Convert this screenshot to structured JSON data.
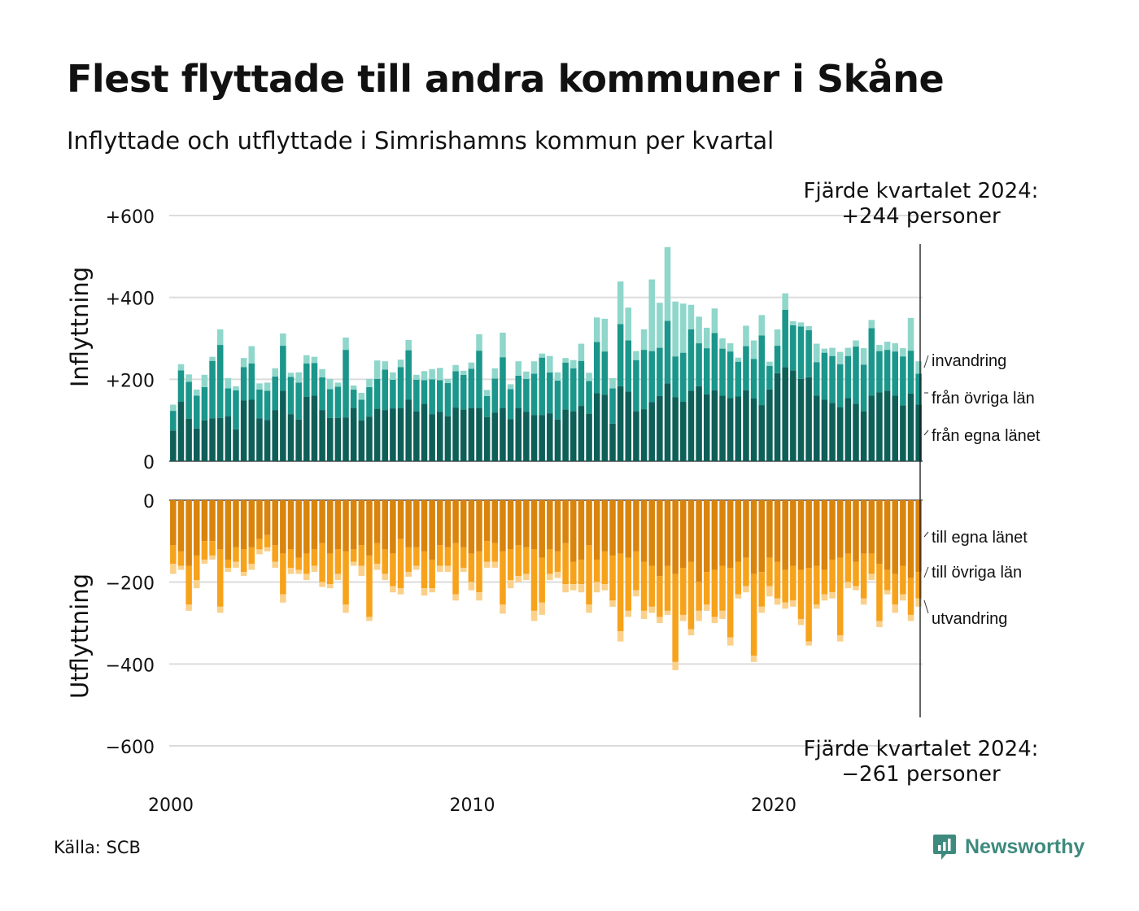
{
  "title": "Flest flyttade till andra kommuner i Skåne",
  "subtitle": "Inflyttade och utflyttade i Simrishamns kommun per kvartal",
  "source": "Källa: SCB",
  "brand": "Newsworthy",
  "colors": {
    "in_local": "#0e5f58",
    "in_other": "#1a968a",
    "in_abroad": "#8fd6cb",
    "out_local": "#d9840c",
    "out_other": "#f7a21b",
    "out_abroad": "#fad08a",
    "brand": "#3e8a7e"
  },
  "chart_data": {
    "type": "bar",
    "stacked": true,
    "x_start": 2000,
    "x_step": 0.25,
    "x_ticks": [
      "2000",
      "2010",
      "2020"
    ],
    "in_panel": {
      "ylabel": "Inflyttning",
      "ylim": [
        0,
        600
      ],
      "y_ticks": [
        "0",
        "+200",
        "+400",
        "+600"
      ],
      "annotation_line1": "Fjärde kvartalet 2024:",
      "annotation_line2": "+244 personer",
      "series": [
        {
          "name": "från egna länet",
          "values": [
            75,
            145,
            104,
            80,
            100,
            105,
            106,
            110,
            78,
            148,
            150,
            105,
            101,
            125,
            172,
            115,
            102,
            157,
            160,
            125,
            106,
            106,
            107,
            130,
            100,
            109,
            128,
            125,
            129,
            130,
            150,
            122,
            140,
            115,
            121,
            110,
            131,
            126,
            130,
            130,
            108,
            119,
            130,
            103,
            130,
            121,
            113,
            113,
            117,
            102,
            126,
            122,
            135,
            116,
            166,
            162,
            92,
            183,
            170,
            122,
            127,
            144,
            159,
            190,
            156,
            145,
            172,
            183,
            163,
            173,
            160,
            154,
            158,
            173,
            153,
            137,
            175,
            215,
            230,
            222,
            201,
            205,
            160,
            150,
            142,
            132,
            154,
            140,
            122,
            160,
            168,
            172,
            160,
            136,
            165,
            138
          ]
        },
        {
          "name": "från övriga län",
          "values": [
            48,
            77,
            90,
            80,
            81,
            140,
            178,
            68,
            95,
            82,
            89,
            70,
            71,
            82,
            110,
            91,
            90,
            82,
            80,
            80,
            70,
            76,
            165,
            45,
            50,
            72,
            73,
            99,
            70,
            100,
            121,
            77,
            58,
            85,
            77,
            81,
            89,
            85,
            96,
            140,
            51,
            83,
            124,
            73,
            79,
            80,
            101,
            140,
            100,
            95,
            115,
            105,
            110,
            80,
            125,
            106,
            86,
            152,
            125,
            125,
            145,
            125,
            118,
            153,
            100,
            120,
            150,
            105,
            113,
            140,
            115,
            114,
            85,
            108,
            97,
            170,
            58,
            67,
            140,
            110,
            128,
            115,
            82,
            115,
            115,
            105,
            103,
            140,
            114,
            165,
            101,
            100,
            108,
            120,
            105,
            76
          ]
        },
        {
          "name": "invandring",
          "values": [
            15,
            15,
            18,
            15,
            30,
            10,
            38,
            25,
            10,
            22,
            42,
            15,
            20,
            20,
            30,
            10,
            25,
            20,
            15,
            20,
            25,
            10,
            30,
            10,
            17,
            20,
            45,
            20,
            18,
            18,
            25,
            12,
            22,
            25,
            30,
            10,
            15,
            10,
            15,
            40,
            15,
            25,
            60,
            12,
            35,
            18,
            30,
            10,
            40,
            20,
            11,
            20,
            42,
            20,
            60,
            80,
            25,
            104,
            80,
            22,
            50,
            175,
            110,
            180,
            134,
            120,
            60,
            65,
            50,
            60,
            25,
            20,
            10,
            50,
            45,
            50,
            10,
            40,
            40,
            10,
            10,
            10,
            45,
            10,
            20,
            30,
            20,
            15,
            40,
            20,
            15,
            20,
            20,
            20,
            80,
            30
          ]
        }
      ]
    },
    "out_panel": {
      "ylabel": "Utflyttning",
      "ylim": [
        -600,
        0
      ],
      "y_ticks": [
        "0",
        "−200",
        "−400",
        "−600"
      ],
      "annotation_line1": "Fjärde kvartalet 2024:",
      "annotation_line2": "−261 personer",
      "series": [
        {
          "name": "till egna länet",
          "values": [
            -110,
            -125,
            -160,
            -135,
            -100,
            -100,
            -120,
            -145,
            -115,
            -120,
            -115,
            -95,
            -85,
            -110,
            -130,
            -120,
            -140,
            -130,
            -120,
            -105,
            -130,
            -120,
            -125,
            -120,
            -110,
            -135,
            -105,
            -120,
            -130,
            -95,
            -115,
            -115,
            -125,
            -145,
            -110,
            -115,
            -105,
            -115,
            -130,
            -125,
            -100,
            -105,
            -125,
            -120,
            -110,
            -115,
            -120,
            -140,
            -120,
            -125,
            -105,
            -150,
            -145,
            -110,
            -145,
            -125,
            -135,
            -130,
            -140,
            -125,
            -150,
            -160,
            -185,
            -160,
            -180,
            -165,
            -150,
            -200,
            -175,
            -170,
            -160,
            -165,
            -150,
            -140,
            -180,
            -175,
            -140,
            -150,
            -170,
            -160,
            -170,
            -165,
            -160,
            -170,
            -145,
            -140,
            -130,
            -150,
            -130,
            -130,
            -155,
            -170,
            -180,
            -160,
            -190,
            -175
          ]
        },
        {
          "name": "till övriga län",
          "values": [
            -45,
            -35,
            -95,
            -60,
            -45,
            -35,
            -140,
            -20,
            -35,
            -55,
            -40,
            -25,
            -30,
            -40,
            -100,
            -45,
            -30,
            -50,
            -40,
            -95,
            -75,
            -60,
            -130,
            -30,
            -50,
            -150,
            -50,
            -60,
            -80,
            -120,
            -60,
            -45,
            -90,
            -70,
            -50,
            -45,
            -125,
            -50,
            -70,
            -100,
            -50,
            -45,
            -130,
            -75,
            -75,
            -65,
            -150,
            -110,
            -60,
            -50,
            -100,
            -55,
            -60,
            -145,
            -55,
            -80,
            -110,
            -190,
            -130,
            -95,
            -120,
            -100,
            -100,
            -110,
            -215,
            -115,
            -165,
            -70,
            -80,
            -115,
            -110,
            -170,
            -80,
            -70,
            -200,
            -85,
            -70,
            -90,
            -80,
            -85,
            -120,
            -180,
            -95,
            -60,
            -80,
            -190,
            -70,
            -60,
            -110,
            -50,
            -140,
            -50,
            -75,
            -70,
            -90,
            -65
          ]
        },
        {
          "name": "utvandring",
          "values": [
            -25,
            -10,
            -15,
            -20,
            -10,
            -10,
            -15,
            -10,
            -15,
            -10,
            -15,
            -12,
            -10,
            -15,
            -20,
            -15,
            -10,
            -15,
            -15,
            -12,
            -10,
            -15,
            -20,
            -10,
            -25,
            -10,
            -15,
            -15,
            -15,
            -15,
            -12,
            -10,
            -18,
            -10,
            -15,
            -15,
            -15,
            -10,
            -20,
            -20,
            -15,
            -15,
            -22,
            -20,
            -15,
            -15,
            -25,
            -30,
            -15,
            -15,
            -20,
            -15,
            -20,
            -20,
            -25,
            -15,
            -15,
            -25,
            -15,
            -15,
            -20,
            -15,
            -15,
            -10,
            -20,
            -15,
            -15,
            -25,
            -15,
            -15,
            -20,
            -20,
            -10,
            -15,
            -15,
            -15,
            -25,
            -15,
            -15,
            -15,
            -15,
            -10,
            -10,
            -15,
            -15,
            -15,
            -15,
            -10,
            -15,
            -15,
            -15,
            -10,
            -20,
            -15,
            -15,
            -20
          ]
        }
      ]
    }
  }
}
